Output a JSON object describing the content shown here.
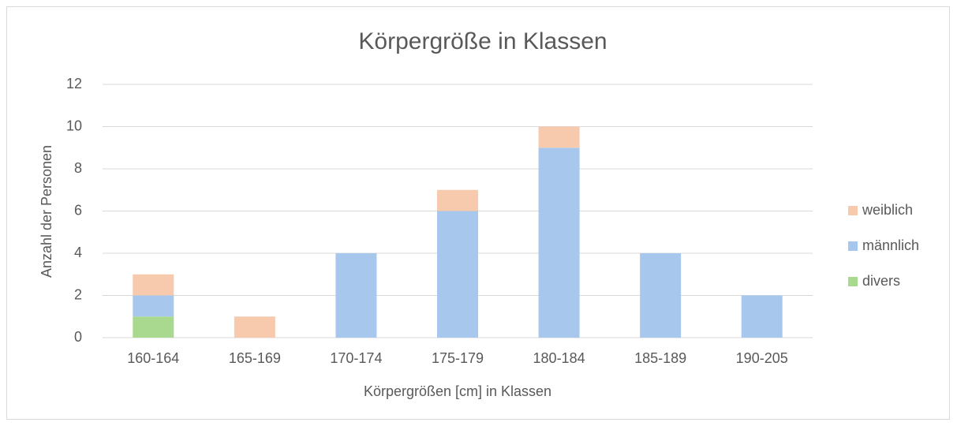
{
  "chart_data": {
    "type": "stacked_bar",
    "title": "Körpergröße in Klassen",
    "x_label": "Körpergrößen [cm] in Klassen",
    "y_label": "Anzahl der Personen",
    "categories": [
      "160-164",
      "165-169",
      "170-174",
      "175-179",
      "180-184",
      "185-189",
      "190-205"
    ],
    "series": [
      {
        "name": "divers",
        "color": "#a9d98f",
        "values": [
          1,
          0,
          0,
          0,
          0,
          0,
          0
        ]
      },
      {
        "name": "männlich",
        "color": "#a7c8ec",
        "values": [
          1,
          0,
          4,
          6,
          9,
          4,
          2
        ]
      },
      {
        "name": "weiblich",
        "color": "#f7c9ad",
        "values": [
          1,
          1,
          0,
          1,
          1,
          0,
          0
        ]
      }
    ],
    "ylim": [
      0,
      12
    ],
    "yticks": [
      0,
      2,
      4,
      6,
      8,
      10,
      12
    ],
    "grid": true,
    "legend": "right"
  }
}
